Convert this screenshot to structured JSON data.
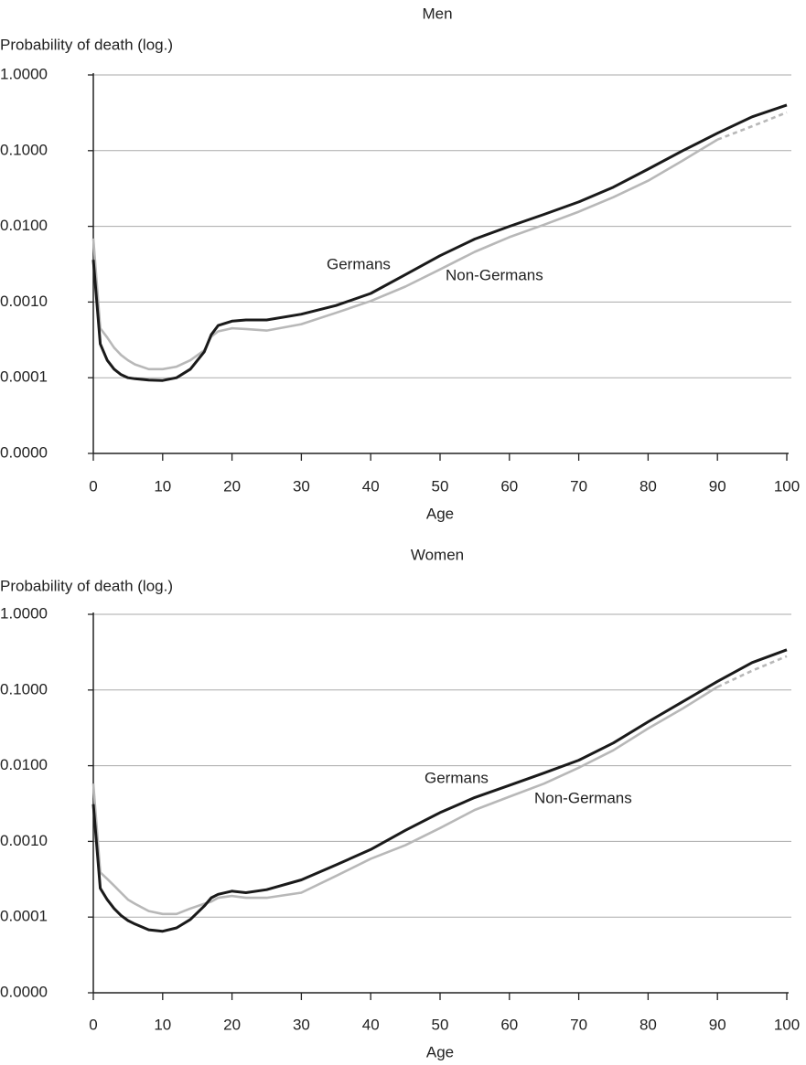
{
  "chart_data": [
    {
      "type": "line",
      "title": "Men",
      "y_label": "Probability of death (log.)",
      "x_label": "Age",
      "log_y": true,
      "grid": true,
      "x": [
        0,
        1,
        2,
        3,
        4,
        5,
        6,
        8,
        10,
        12,
        14,
        16,
        17,
        18,
        20,
        22,
        25,
        30,
        35,
        40,
        45,
        50,
        55,
        60,
        65,
        70,
        75,
        80,
        85,
        90,
        95,
        100
      ],
      "series": [
        {
          "name": "Germans",
          "color": "#1a1a1a",
          "values": [
            0.0036,
            0.00028,
            0.00017,
            0.00013,
            0.00011,
            0.0001,
            9.7e-05,
            9.3e-05,
            9.2e-05,
            0.0001,
            0.00013,
            0.00022,
            0.00037,
            0.00049,
            0.00056,
            0.00058,
            0.00058,
            0.00069,
            0.0009,
            0.0013,
            0.0023,
            0.0041,
            0.0068,
            0.01,
            0.0144,
            0.021,
            0.033,
            0.057,
            0.1,
            0.17,
            0.28,
            0.4
          ]
        },
        {
          "name": "Non-Germans",
          "color": "#b8b8b8",
          "dashed_from_x": 90,
          "values": [
            0.0069,
            0.00045,
            0.00034,
            0.00025,
            0.0002,
            0.00017,
            0.00015,
            0.00013,
            0.00013,
            0.00014,
            0.00017,
            0.00023,
            0.00035,
            0.00041,
            0.00045,
            0.00044,
            0.00042,
            0.00051,
            0.00072,
            0.00103,
            0.0016,
            0.0027,
            0.0046,
            0.0072,
            0.0105,
            0.0156,
            0.0243,
            0.04,
            0.074,
            0.14,
            0.21,
            0.32
          ]
        }
      ],
      "xlim": [
        0,
        100
      ],
      "xticks": [
        0,
        10,
        20,
        30,
        40,
        50,
        60,
        70,
        80,
        90,
        100
      ],
      "ylim": [
        1e-05,
        1
      ],
      "yticks": [
        {
          "value": 1e-05,
          "label": "0.0000"
        },
        {
          "value": 0.0001,
          "label": "0.0001"
        },
        {
          "value": 0.001,
          "label": "0.0010"
        },
        {
          "value": 0.01,
          "label": "0.0100"
        },
        {
          "value": 0.1,
          "label": "0.1000"
        },
        {
          "value": 1,
          "label": "1.0000"
        }
      ]
    },
    {
      "type": "line",
      "title": "Women",
      "y_label": "Probability of death (log.)",
      "x_label": "Age",
      "log_y": true,
      "grid": true,
      "x": [
        0,
        1,
        2,
        3,
        4,
        5,
        6,
        8,
        10,
        12,
        14,
        16,
        17,
        18,
        20,
        22,
        25,
        30,
        35,
        40,
        45,
        50,
        55,
        60,
        65,
        70,
        75,
        80,
        85,
        90,
        95,
        100
      ],
      "series": [
        {
          "name": "Germans",
          "color": "#1a1a1a",
          "values": [
            0.0031,
            0.00024,
            0.00017,
            0.00013,
            0.000105,
            9e-05,
            8.1e-05,
            6.8e-05,
            6.5e-05,
            7.2e-05,
            9.3e-05,
            0.00014,
            0.00018,
            0.0002,
            0.00022,
            0.00021,
            0.00023,
            0.00031,
            0.00049,
            0.00078,
            0.0014,
            0.0024,
            0.0038,
            0.0055,
            0.008,
            0.0118,
            0.02,
            0.038,
            0.07,
            0.13,
            0.23,
            0.34
          ]
        },
        {
          "name": "Non-Germans",
          "color": "#b8b8b8",
          "dashed_from_x": 90,
          "values": [
            0.0058,
            0.00039,
            0.00032,
            0.00026,
            0.00021,
            0.00017,
            0.00015,
            0.00012,
            0.00011,
            0.00011,
            0.00013,
            0.00015,
            0.00016,
            0.00018,
            0.00019,
            0.00018,
            0.00018,
            0.00021,
            0.00035,
            0.00059,
            0.00089,
            0.0015,
            0.0026,
            0.0039,
            0.0058,
            0.0094,
            0.016,
            0.031,
            0.057,
            0.11,
            0.18,
            0.28
          ]
        }
      ],
      "xlim": [
        0,
        100
      ],
      "xticks": [
        0,
        10,
        20,
        30,
        40,
        50,
        60,
        70,
        80,
        90,
        100
      ],
      "ylim": [
        1e-05,
        1
      ],
      "yticks": [
        {
          "value": 1e-05,
          "label": "0.0000"
        },
        {
          "value": 0.0001,
          "label": "0.0001"
        },
        {
          "value": 0.001,
          "label": "0.0010"
        },
        {
          "value": 0.01,
          "label": "0.0100"
        },
        {
          "value": 0.1,
          "label": "0.1000"
        },
        {
          "value": 1,
          "label": "1.0000"
        }
      ]
    }
  ]
}
